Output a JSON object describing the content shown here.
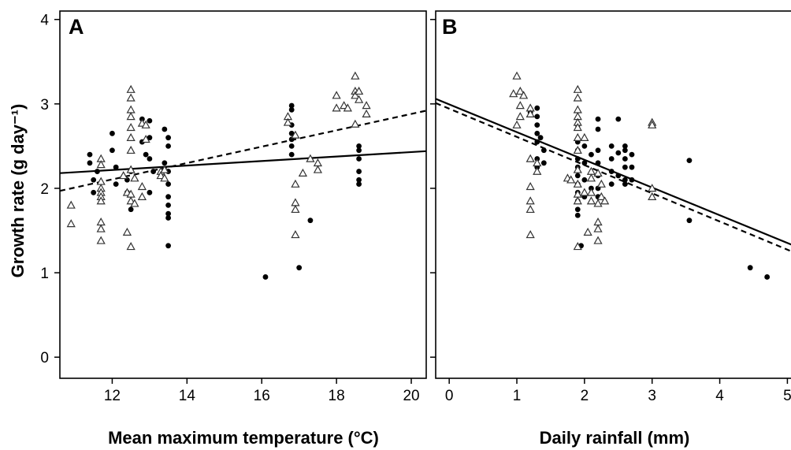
{
  "figure": {
    "ylabel": "Growth rate (g day⁻¹)"
  },
  "chart_data": [
    {
      "type": "scatter",
      "panel": "A",
      "xlabel": "Mean maximum temperature (°C)",
      "ylabel": "Growth rate (g day⁻¹)",
      "xlim": [
        10.6,
        20.4
      ],
      "ylim": [
        -0.25,
        4.1
      ],
      "xticks": [
        12,
        14,
        16,
        18,
        20
      ],
      "yticks": [
        0,
        1,
        2,
        3,
        4
      ],
      "grid": false,
      "series": [
        {
          "marker": "filled-circle",
          "points": [
            [
              11.4,
              2.4
            ],
            [
              11.4,
              2.3
            ],
            [
              11.5,
              2.1
            ],
            [
              11.5,
              1.95
            ],
            [
              11.6,
              2.2
            ],
            [
              12.0,
              2.65
            ],
            [
              12.0,
              2.45
            ],
            [
              12.1,
              2.25
            ],
            [
              12.1,
              2.05
            ],
            [
              12.4,
              2.1
            ],
            [
              12.4,
              1.95
            ],
            [
              12.5,
              2.2
            ],
            [
              12.5,
              1.75
            ],
            [
              12.8,
              2.82
            ],
            [
              12.8,
              2.55
            ],
            [
              12.9,
              2.4
            ],
            [
              13.0,
              2.8
            ],
            [
              13.0,
              2.6
            ],
            [
              13.0,
              2.35
            ],
            [
              13.1,
              2.2
            ],
            [
              13.0,
              1.95
            ],
            [
              13.4,
              2.7
            ],
            [
              13.5,
              2.6
            ],
            [
              13.5,
              2.5
            ],
            [
              13.4,
              2.3
            ],
            [
              13.5,
              2.2
            ],
            [
              13.5,
              2.05
            ],
            [
              13.5,
              1.9
            ],
            [
              13.5,
              1.8
            ],
            [
              13.5,
              1.7
            ],
            [
              13.5,
              1.65
            ],
            [
              13.5,
              1.32
            ],
            [
              16.1,
              0.95
            ],
            [
              17.0,
              1.06
            ],
            [
              17.3,
              1.62
            ],
            [
              16.8,
              2.98
            ],
            [
              16.8,
              2.93
            ],
            [
              16.8,
              2.75
            ],
            [
              16.8,
              2.65
            ],
            [
              16.8,
              2.58
            ],
            [
              16.8,
              2.5
            ],
            [
              16.8,
              2.4
            ],
            [
              18.6,
              2.5
            ],
            [
              18.6,
              2.45
            ],
            [
              18.6,
              2.35
            ],
            [
              18.6,
              2.2
            ],
            [
              18.6,
              2.1
            ],
            [
              18.6,
              2.05
            ]
          ]
        },
        {
          "marker": "open-triangle",
          "points": [
            [
              10.9,
              1.8
            ],
            [
              10.9,
              1.58
            ],
            [
              11.7,
              2.35
            ],
            [
              11.7,
              2.28
            ],
            [
              11.7,
              2.08
            ],
            [
              11.7,
              2.0
            ],
            [
              11.7,
              1.95
            ],
            [
              11.7,
              1.9
            ],
            [
              11.7,
              1.85
            ],
            [
              11.7,
              1.6
            ],
            [
              11.7,
              1.52
            ],
            [
              11.7,
              1.38
            ],
            [
              12.3,
              2.15
            ],
            [
              12.4,
              1.95
            ],
            [
              12.4,
              1.48
            ],
            [
              12.5,
              3.17
            ],
            [
              12.5,
              3.07
            ],
            [
              12.5,
              2.93
            ],
            [
              12.5,
              2.85
            ],
            [
              12.5,
              2.72
            ],
            [
              12.5,
              2.6
            ],
            [
              12.5,
              2.45
            ],
            [
              12.5,
              2.22
            ],
            [
              12.5,
              1.93
            ],
            [
              12.5,
              1.85
            ],
            [
              12.5,
              1.31
            ],
            [
              12.6,
              1.82
            ],
            [
              12.6,
              2.12
            ],
            [
              12.8,
              2.77
            ],
            [
              12.8,
              2.02
            ],
            [
              12.8,
              1.9
            ],
            [
              12.9,
              2.75
            ],
            [
              12.9,
              2.58
            ],
            [
              13.3,
              2.2
            ],
            [
              13.3,
              2.15
            ],
            [
              13.4,
              2.22
            ],
            [
              13.4,
              2.12
            ],
            [
              16.7,
              2.85
            ],
            [
              16.7,
              2.78
            ],
            [
              16.9,
              2.63
            ],
            [
              16.9,
              2.05
            ],
            [
              16.9,
              1.83
            ],
            [
              16.9,
              1.75
            ],
            [
              16.9,
              1.45
            ],
            [
              17.1,
              2.18
            ],
            [
              17.3,
              2.35
            ],
            [
              17.5,
              2.3
            ],
            [
              17.5,
              2.22
            ],
            [
              18.0,
              3.1
            ],
            [
              18.0,
              2.95
            ],
            [
              18.2,
              2.98
            ],
            [
              18.3,
              2.95
            ],
            [
              18.5,
              3.33
            ],
            [
              18.5,
              3.15
            ],
            [
              18.5,
              3.1
            ],
            [
              18.6,
              3.15
            ],
            [
              18.6,
              3.05
            ],
            [
              18.8,
              2.98
            ],
            [
              18.8,
              2.88
            ],
            [
              18.5,
              2.76
            ]
          ]
        }
      ],
      "lines": [
        {
          "style": "solid",
          "x": [
            10.6,
            20.4
          ],
          "y": [
            2.18,
            2.44
          ]
        },
        {
          "style": "dashed",
          "x": [
            10.6,
            20.4
          ],
          "y": [
            1.97,
            2.92
          ]
        }
      ]
    },
    {
      "type": "scatter",
      "panel": "B",
      "xlabel": "Daily rainfall (mm)",
      "ylabel": "",
      "xlim": [
        -0.2,
        5.1
      ],
      "ylim": [
        -0.25,
        4.1
      ],
      "xticks": [
        0,
        1,
        2,
        3,
        4,
        5
      ],
      "yticks": [
        0,
        1,
        2,
        3,
        4
      ],
      "grid": false,
      "series": [
        {
          "marker": "filled-circle",
          "points": [
            [
              1.2,
              2.9
            ],
            [
              1.3,
              2.95
            ],
            [
              1.3,
              2.85
            ],
            [
              1.3,
              2.75
            ],
            [
              1.3,
              2.65
            ],
            [
              1.3,
              2.55
            ],
            [
              1.3,
              2.35
            ],
            [
              1.3,
              2.25
            ],
            [
              1.4,
              2.45
            ],
            [
              1.4,
              2.3
            ],
            [
              1.35,
              2.6
            ],
            [
              1.9,
              2.75
            ],
            [
              1.9,
              2.55
            ],
            [
              1.9,
              2.45
            ],
            [
              1.9,
              2.35
            ],
            [
              1.9,
              2.25
            ],
            [
              1.9,
              2.15
            ],
            [
              1.9,
              2.05
            ],
            [
              1.9,
              1.95
            ],
            [
              1.9,
              1.85
            ],
            [
              1.9,
              1.75
            ],
            [
              1.9,
              1.68
            ],
            [
              1.95,
              1.32
            ],
            [
              2.0,
              2.5
            ],
            [
              2.0,
              2.3
            ],
            [
              2.0,
              2.1
            ],
            [
              2.0,
              1.9
            ],
            [
              2.1,
              2.4
            ],
            [
              2.1,
              2.0
            ],
            [
              2.2,
              2.82
            ],
            [
              2.2,
              2.7
            ],
            [
              2.2,
              2.45
            ],
            [
              2.2,
              2.3
            ],
            [
              2.2,
              2.15
            ],
            [
              2.2,
              2.0
            ],
            [
              2.2,
              1.9
            ],
            [
              2.4,
              2.5
            ],
            [
              2.4,
              2.35
            ],
            [
              2.4,
              2.2
            ],
            [
              2.4,
              2.05
            ],
            [
              2.5,
              2.82
            ],
            [
              2.5,
              2.42
            ],
            [
              2.5,
              2.15
            ],
            [
              2.6,
              2.5
            ],
            [
              2.6,
              2.45
            ],
            [
              2.6,
              2.35
            ],
            [
              2.6,
              2.25
            ],
            [
              2.6,
              2.1
            ],
            [
              2.6,
              2.05
            ],
            [
              2.7,
              2.4
            ],
            [
              2.7,
              2.25
            ],
            [
              2.7,
              2.1
            ],
            [
              3.55,
              2.33
            ],
            [
              3.55,
              1.62
            ],
            [
              4.45,
              1.06
            ],
            [
              4.7,
              0.95
            ]
          ]
        },
        {
          "marker": "open-triangle",
          "points": [
            [
              0.95,
              3.12
            ],
            [
              1.0,
              3.33
            ],
            [
              1.05,
              3.15
            ],
            [
              1.1,
              3.1
            ],
            [
              1.05,
              2.98
            ],
            [
              1.05,
              2.85
            ],
            [
              1.0,
              2.75
            ],
            [
              1.2,
              2.95
            ],
            [
              1.2,
              2.88
            ],
            [
              1.2,
              2.35
            ],
            [
              1.2,
              2.02
            ],
            [
              1.2,
              1.85
            ],
            [
              1.2,
              1.75
            ],
            [
              1.2,
              1.45
            ],
            [
              1.3,
              2.2
            ],
            [
              1.3,
              2.3
            ],
            [
              1.75,
              2.12
            ],
            [
              1.8,
              2.1
            ],
            [
              1.9,
              3.17
            ],
            [
              1.9,
              3.07
            ],
            [
              1.9,
              2.93
            ],
            [
              1.9,
              2.85
            ],
            [
              1.9,
              2.78
            ],
            [
              1.9,
              2.72
            ],
            [
              1.9,
              2.6
            ],
            [
              1.9,
              2.45
            ],
            [
              1.9,
              2.22
            ],
            [
              1.9,
              2.05
            ],
            [
              1.9,
              1.93
            ],
            [
              1.9,
              1.85
            ],
            [
              1.9,
              1.31
            ],
            [
              2.0,
              2.6
            ],
            [
              2.0,
              1.95
            ],
            [
              2.05,
              1.48
            ],
            [
              2.1,
              2.2
            ],
            [
              2.1,
              2.12
            ],
            [
              2.1,
              1.95
            ],
            [
              2.1,
              1.85
            ],
            [
              2.2,
              2.18
            ],
            [
              2.2,
              1.82
            ],
            [
              2.2,
              1.6
            ],
            [
              2.2,
              1.52
            ],
            [
              2.2,
              1.38
            ],
            [
              2.25,
              2.05
            ],
            [
              2.25,
              1.9
            ],
            [
              2.3,
              1.85
            ],
            [
              3.0,
              2.78
            ],
            [
              3.0,
              2.75
            ],
            [
              3.0,
              2.0
            ],
            [
              3.0,
              1.9
            ]
          ]
        }
      ],
      "lines": [
        {
          "style": "solid",
          "x": [
            -0.2,
            5.1
          ],
          "y": [
            3.06,
            1.32
          ]
        },
        {
          "style": "dashed",
          "x": [
            -0.2,
            5.1
          ],
          "y": [
            3.01,
            1.24
          ]
        }
      ]
    }
  ]
}
